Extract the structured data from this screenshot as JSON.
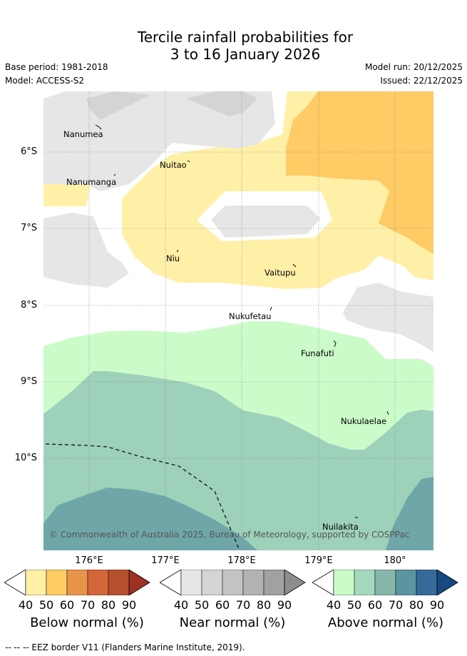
{
  "title": {
    "line1": "Tercile rainfall probabilities for",
    "line2": "3 to 16 January 2026"
  },
  "meta": {
    "base_period": "Base period: 1981-2018",
    "model": "Model: ACCESS-S2",
    "model_run": "Model run: 20/12/2025",
    "issued": "Issued: 22/12/2025"
  },
  "axes": {
    "lat_labels": [
      "6°S",
      "7°S",
      "8°S",
      "9°S",
      "10°S"
    ],
    "lon_labels": [
      "176°E",
      "177°E",
      "178°E",
      "179°E",
      "180°"
    ]
  },
  "places": [
    "Nanumea",
    "Nuitao",
    "Nanumanga",
    "Niu",
    "Vaitupu",
    "Nukufetau",
    "Funafuti",
    "Nukulaelae",
    "Nuilakita"
  ],
  "credit": "© Commonwealth of Australia 2025, Bureau of Meteorology, supported by COSPPac",
  "colorbars": {
    "below": {
      "label": "Below normal (%)",
      "ticks": [
        "40",
        "50",
        "60",
        "70",
        "80",
        "90"
      ],
      "colors": [
        "#fff0a8",
        "#fecb65",
        "#e7944a",
        "#d4673a",
        "#b5502e",
        "#9c3124"
      ]
    },
    "near": {
      "label": "Near normal (%)",
      "ticks": [
        "40",
        "50",
        "60",
        "70",
        "80",
        "90"
      ],
      "colors": [
        "#e6e6e6",
        "#d4d4d4",
        "#c3c3c3",
        "#b3b3b3",
        "#a1a1a1",
        "#8d8d8d"
      ]
    },
    "above": {
      "label": "Above normal (%)",
      "ticks": [
        "40",
        "50",
        "60",
        "70",
        "80",
        "90"
      ],
      "colors": [
        "#cbfbc9",
        "#a6d8bd",
        "#87b7ab",
        "#5b959f",
        "#356a9b",
        "#174a80"
      ]
    }
  },
  "footer": "-- -- -- EEZ border V11 (Flanders Marine Institute, 2019)."
}
